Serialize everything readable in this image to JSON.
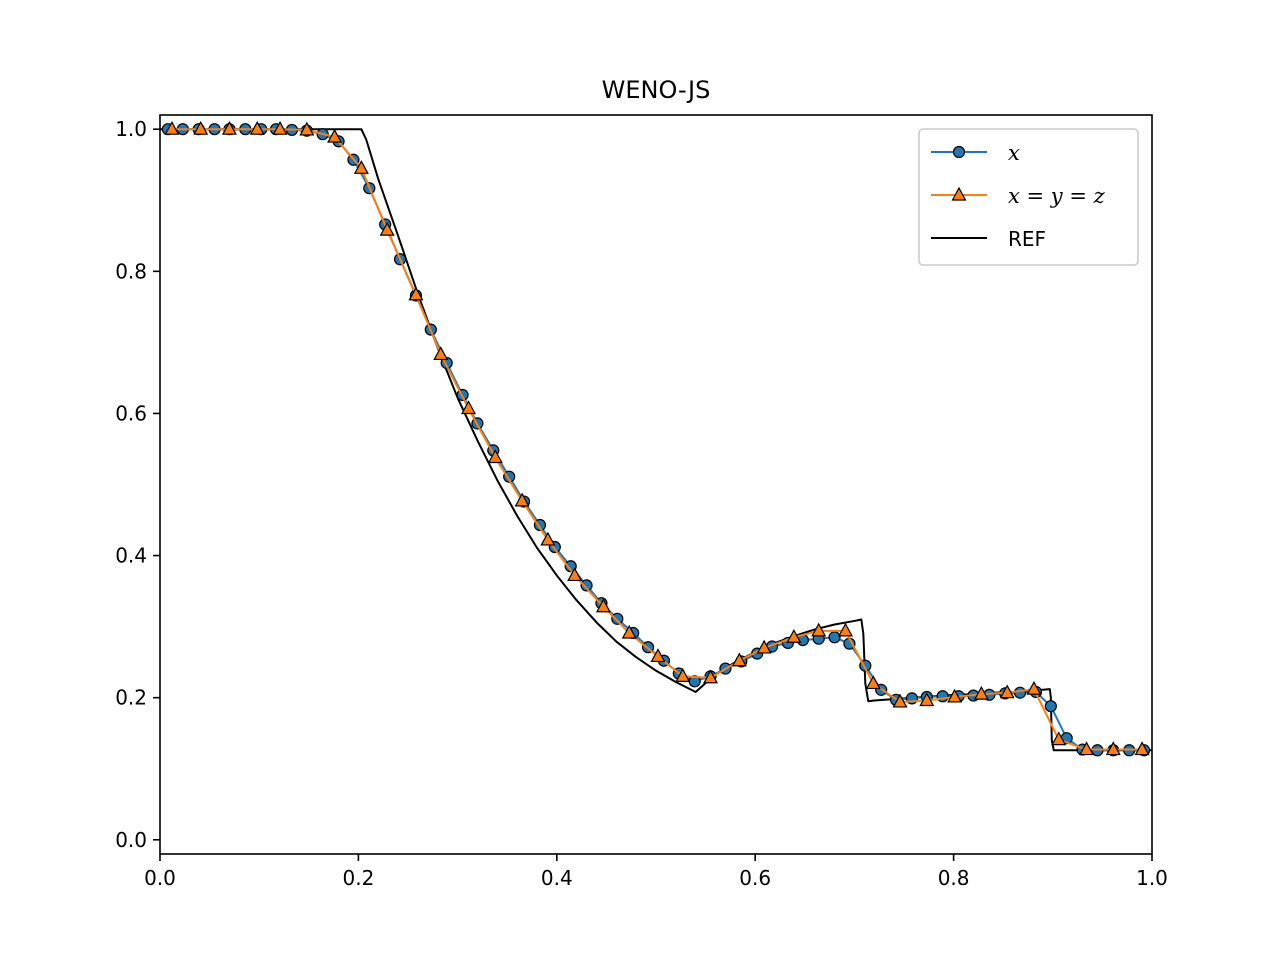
{
  "chart_data": {
    "type": "line",
    "title": "WENO-JS",
    "xlabel": "",
    "ylabel": "",
    "xlim": [
      0.0,
      1.0
    ],
    "ylim": [
      -0.02,
      1.02
    ],
    "xticks": [
      "0.0",
      "0.2",
      "0.4",
      "0.6",
      "0.8",
      "1.0"
    ],
    "yticks": [
      "0.0",
      "0.2",
      "0.4",
      "0.6",
      "0.8",
      "1.0"
    ],
    "grid": false,
    "legend_position": "top-right",
    "series": [
      {
        "name": "x",
        "color": "#1f77b4",
        "marker": "circle",
        "x": [
          0.008,
          0.023,
          0.039,
          0.055,
          0.07,
          0.086,
          0.102,
          0.117,
          0.133,
          0.148,
          0.164,
          0.18,
          0.195,
          0.211,
          0.227,
          0.242,
          0.258,
          0.273,
          0.289,
          0.305,
          0.32,
          0.336,
          0.352,
          0.367,
          0.383,
          0.398,
          0.414,
          0.43,
          0.445,
          0.461,
          0.477,
          0.492,
          0.508,
          0.523,
          0.539,
          0.555,
          0.57,
          0.586,
          0.602,
          0.617,
          0.633,
          0.648,
          0.664,
          0.68,
          0.695,
          0.711,
          0.727,
          0.742,
          0.758,
          0.773,
          0.789,
          0.805,
          0.82,
          0.836,
          0.852,
          0.867,
          0.883,
          0.898,
          0.914,
          0.93,
          0.945,
          0.961,
          0.977,
          0.992
        ],
        "y": [
          1.0,
          1.0,
          1.0,
          1.0,
          1.0,
          1.0,
          1.0,
          1.0,
          0.999,
          0.998,
          0.993,
          0.983,
          0.957,
          0.917,
          0.866,
          0.817,
          0.766,
          0.718,
          0.671,
          0.626,
          0.586,
          0.548,
          0.511,
          0.476,
          0.443,
          0.412,
          0.385,
          0.358,
          0.333,
          0.311,
          0.291,
          0.271,
          0.252,
          0.234,
          0.223,
          0.23,
          0.241,
          0.251,
          0.262,
          0.272,
          0.277,
          0.281,
          0.283,
          0.285,
          0.276,
          0.245,
          0.211,
          0.197,
          0.199,
          0.201,
          0.202,
          0.202,
          0.203,
          0.204,
          0.206,
          0.207,
          0.208,
          0.188,
          0.143,
          0.127,
          0.126,
          0.126,
          0.126,
          0.126
        ]
      },
      {
        "name": "x = y = z",
        "color": "#ff7f0e",
        "marker": "triangle",
        "x": [
          0.012,
          0.041,
          0.07,
          0.098,
          0.121,
          0.148,
          0.176,
          0.203,
          0.229,
          0.258,
          0.283,
          0.311,
          0.338,
          0.365,
          0.391,
          0.418,
          0.447,
          0.473,
          0.502,
          0.527,
          0.555,
          0.584,
          0.609,
          0.639,
          0.664,
          0.691,
          0.719,
          0.746,
          0.773,
          0.801,
          0.828,
          0.854,
          0.881,
          0.906,
          0.934,
          0.961,
          0.99
        ],
        "y": [
          1.0,
          1.0,
          1.0,
          1.0,
          1.0,
          0.999,
          0.989,
          0.945,
          0.858,
          0.767,
          0.683,
          0.607,
          0.538,
          0.477,
          0.422,
          0.372,
          0.328,
          0.291,
          0.258,
          0.23,
          0.228,
          0.252,
          0.27,
          0.285,
          0.294,
          0.294,
          0.22,
          0.194,
          0.196,
          0.201,
          0.205,
          0.207,
          0.212,
          0.141,
          0.127,
          0.127,
          0.127
        ]
      },
      {
        "name": "REF",
        "color": "#000000",
        "marker": "none",
        "x": [
          0.0,
          0.203,
          0.208,
          0.22,
          0.24,
          0.26,
          0.28,
          0.3,
          0.32,
          0.34,
          0.36,
          0.38,
          0.4,
          0.42,
          0.44,
          0.46,
          0.48,
          0.5,
          0.52,
          0.54,
          0.56,
          0.58,
          0.6,
          0.62,
          0.64,
          0.66,
          0.68,
          0.7,
          0.707,
          0.709,
          0.711,
          0.714,
          0.72,
          0.74,
          0.76,
          0.78,
          0.8,
          0.82,
          0.84,
          0.86,
          0.88,
          0.897,
          0.898,
          0.899,
          0.901,
          0.92,
          0.94,
          0.96,
          0.98,
          1.0
        ],
        "y": [
          1.0,
          1.0,
          0.985,
          0.93,
          0.85,
          0.768,
          0.692,
          0.622,
          0.562,
          0.506,
          0.456,
          0.411,
          0.372,
          0.337,
          0.306,
          0.279,
          0.257,
          0.238,
          0.222,
          0.208,
          0.233,
          0.25,
          0.264,
          0.277,
          0.287,
          0.296,
          0.303,
          0.308,
          0.31,
          0.29,
          0.22,
          0.195,
          0.196,
          0.198,
          0.2,
          0.202,
          0.204,
          0.205,
          0.207,
          0.208,
          0.21,
          0.212,
          0.2,
          0.14,
          0.126,
          0.126,
          0.126,
          0.126,
          0.126,
          0.126
        ]
      }
    ]
  }
}
